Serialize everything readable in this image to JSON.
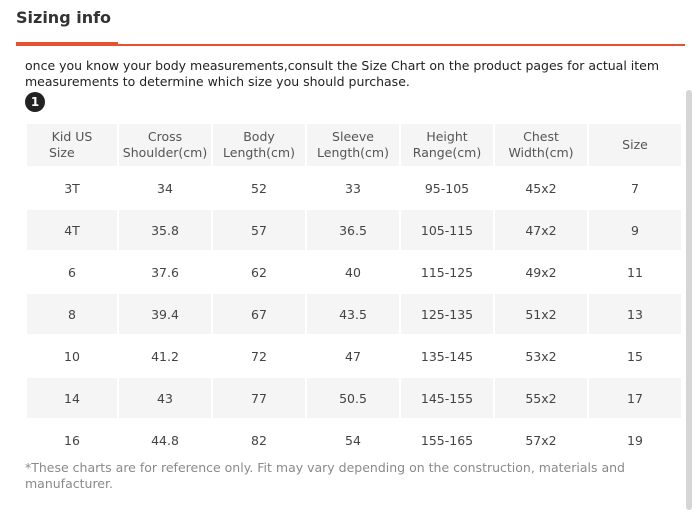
{
  "section": {
    "title": "Sizing info"
  },
  "colors": {
    "accent": "#e8512d",
    "stripe": "#f5f5f5"
  },
  "intro": {
    "text": "once you know your body measurements,consult the Size Chart on the product pages for actual item measurements to determine which size you should purchase.",
    "step_badge": "1"
  },
  "table": {
    "headers": [
      [
        "Kid US",
        "Size"
      ],
      [
        "Cross",
        "Shoulder(cm)"
      ],
      [
        "Body",
        "Length(cm)"
      ],
      [
        "Sleeve",
        "Length(cm)"
      ],
      [
        "Height",
        "Range(cm)"
      ],
      [
        "Chest",
        "Width(cm)"
      ],
      [
        "Size",
        ""
      ]
    ],
    "rows": [
      [
        "3T",
        "34",
        "52",
        "33",
        "95-105",
        "45x2",
        "7"
      ],
      [
        "4T",
        "35.8",
        "57",
        "36.5",
        "105-115",
        "47x2",
        "9"
      ],
      [
        "6",
        "37.6",
        "62",
        "40",
        "115-125",
        "49x2",
        "11"
      ],
      [
        "8",
        "39.4",
        "67",
        "43.5",
        "125-135",
        "51x2",
        "13"
      ],
      [
        "10",
        "41.2",
        "72",
        "47",
        "135-145",
        "53x2",
        "15"
      ],
      [
        "14",
        "43",
        "77",
        "50.5",
        "145-155",
        "55x2",
        "17"
      ],
      [
        "16",
        "44.8",
        "82",
        "54",
        "155-165",
        "57x2",
        "19"
      ]
    ]
  },
  "note": {
    "text": "*These charts are for reference only. Fit may vary depending on the construction, materials and manufacturer."
  }
}
